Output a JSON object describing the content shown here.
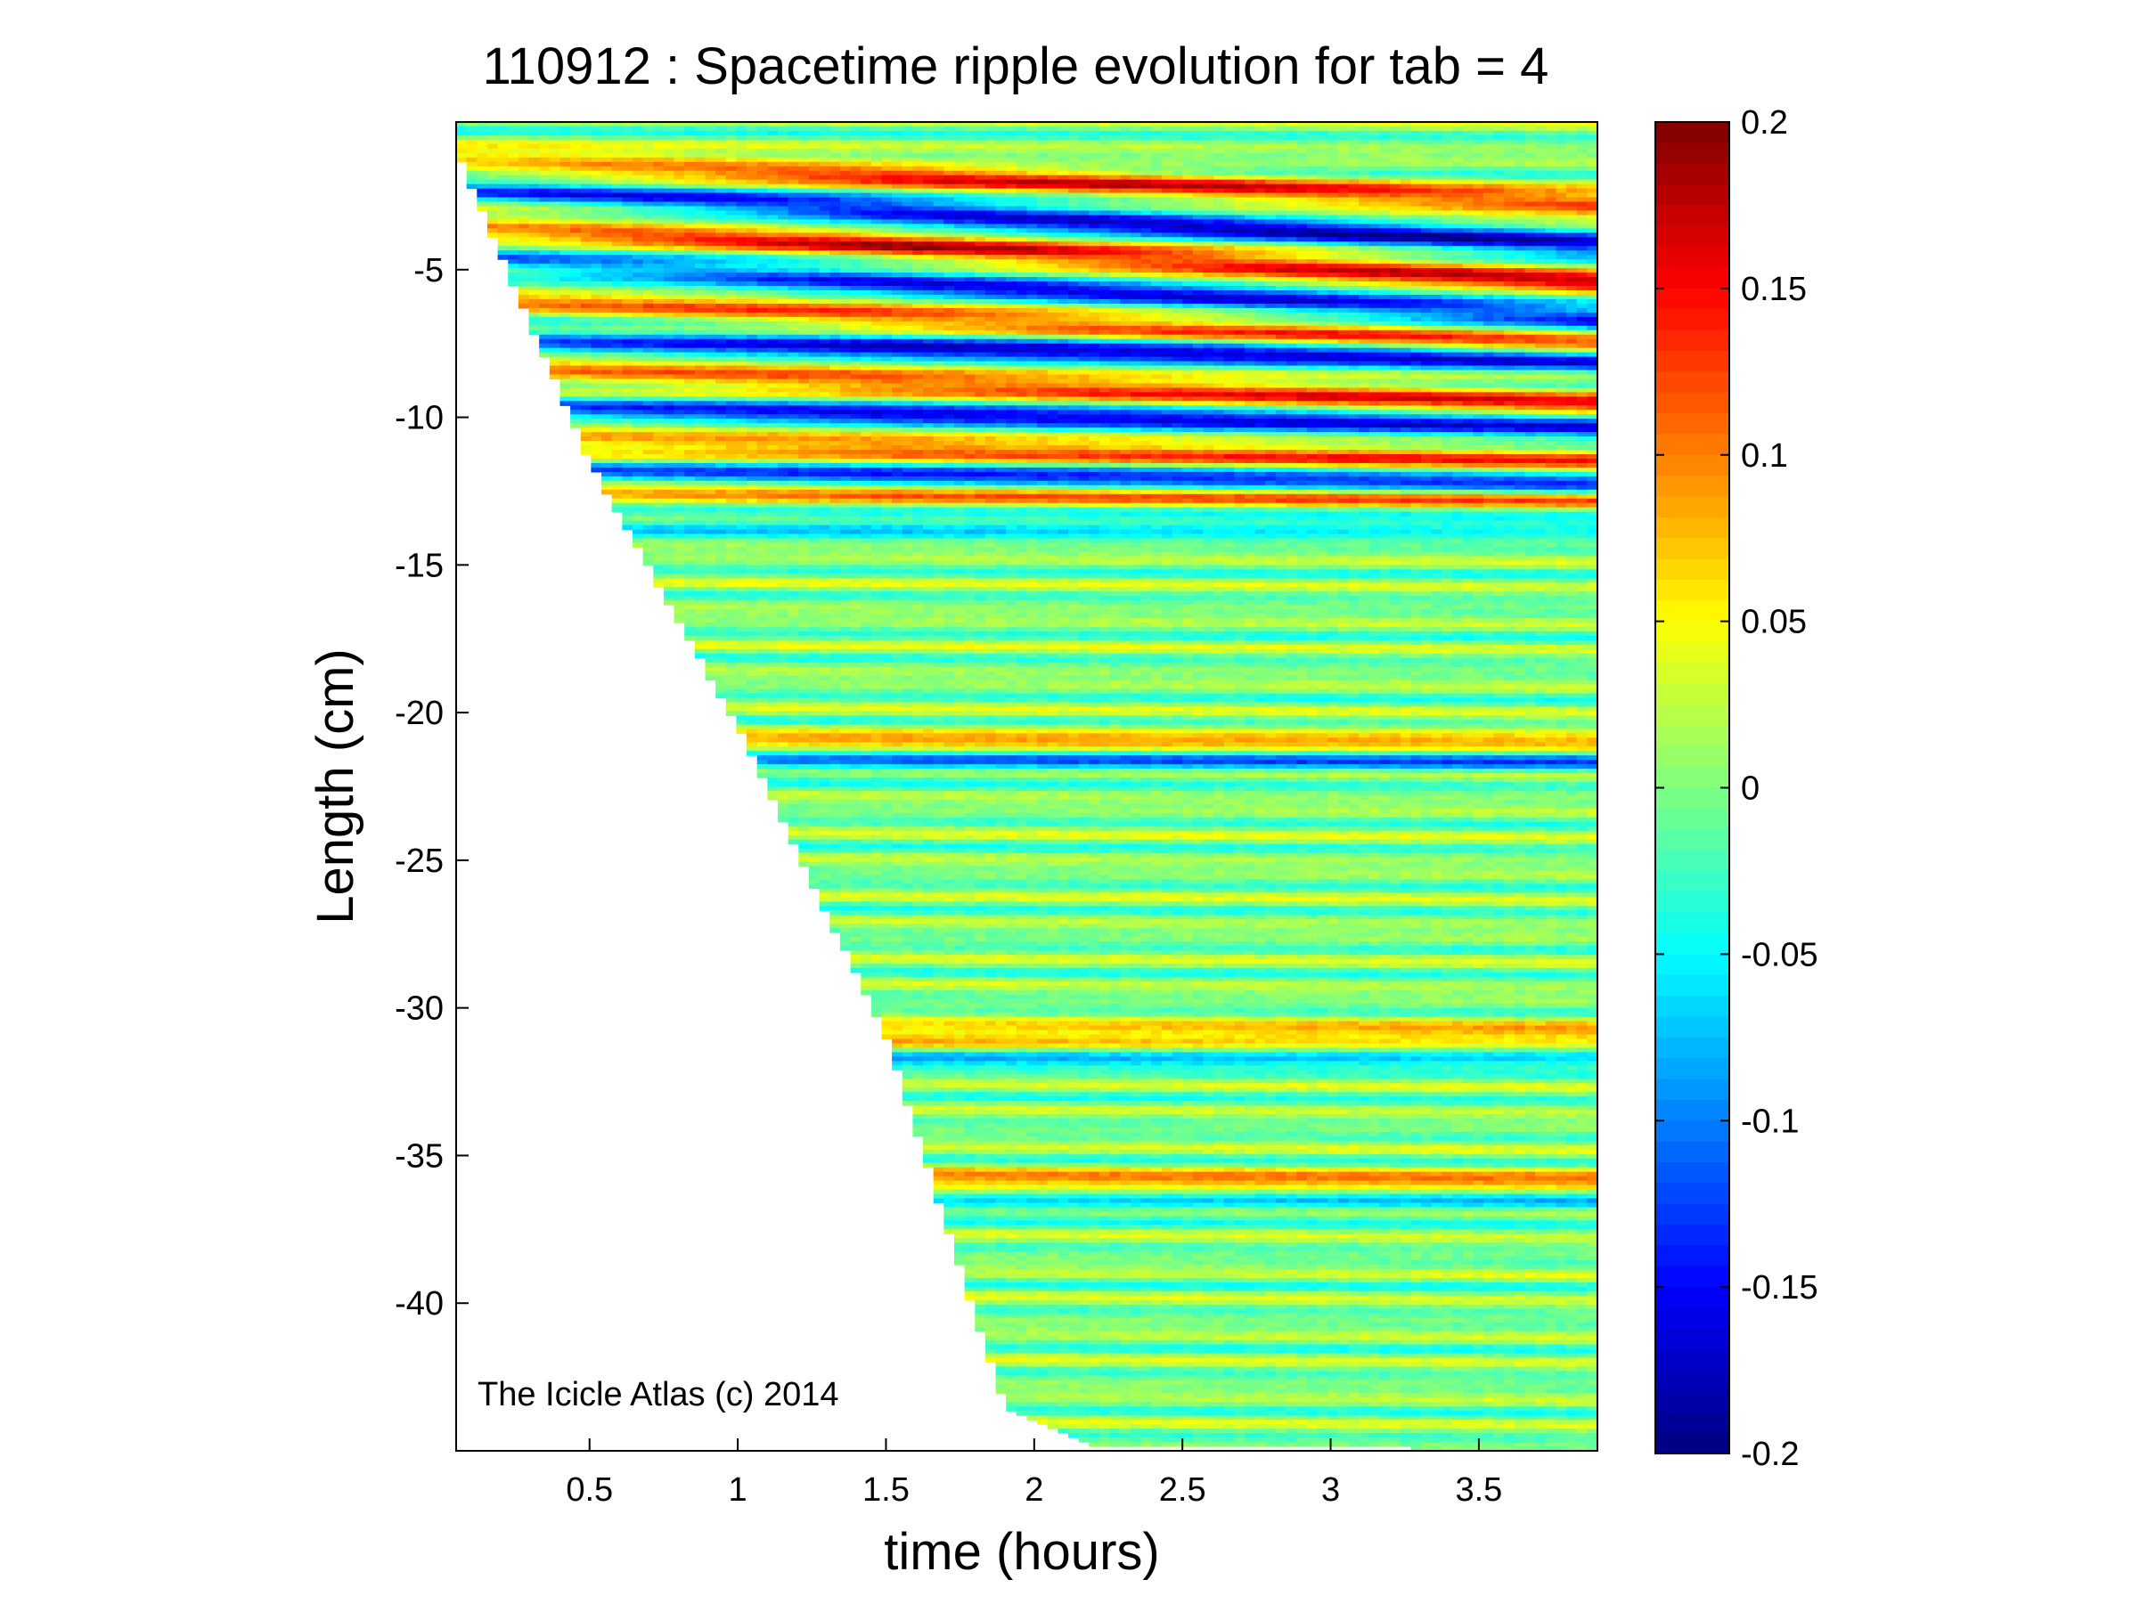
{
  "chart_data": {
    "type": "heatmap",
    "title": "110912 : Spacetime ripple evolution for tab = 4",
    "xlabel": "time (hours)",
    "ylabel": "Length (cm)",
    "xlim": [
      0.05,
      3.9
    ],
    "ylim": [
      -45,
      0
    ],
    "x_ticks": [
      0.5,
      1,
      1.5,
      2,
      2.5,
      3,
      3.5
    ],
    "x_tick_labels": [
      "0.5",
      "1",
      "1.5",
      "2",
      "2.5",
      "3",
      "3.5"
    ],
    "y_ticks": [
      -5,
      -10,
      -15,
      -20,
      -25,
      -30,
      -35,
      -40
    ],
    "y_tick_labels": [
      "-5",
      "-10",
      "-15",
      "-20",
      "-25",
      "-30",
      "-35",
      "-40"
    ],
    "colorbar": {
      "colormap": "jet",
      "clim": [
        -0.2,
        0.2
      ],
      "ticks": [
        0.2,
        0.15,
        0.1,
        0.05,
        0,
        -0.05,
        -0.1,
        -0.15,
        -0.2
      ],
      "tick_labels": [
        "0.2",
        "0.15",
        "0.1",
        "0.05",
        "0",
        "-0.05",
        "-0.1",
        "-0.15",
        "-0.2"
      ]
    },
    "growth_front": [
      {
        "time": 0.05,
        "length": -1.0
      },
      {
        "time": 0.5,
        "length": -11.5
      },
      {
        "time": 1.0,
        "length": -20.5
      },
      {
        "time": 1.5,
        "length": -31.0
      },
      {
        "time": 1.9,
        "length": -43.5
      },
      {
        "time": 2.2,
        "length": -44.8
      },
      {
        "time": 3.9,
        "length": -45.0
      }
    ],
    "ripple_bands": [
      {
        "length": -1.8,
        "amplitude": 0.14,
        "drift": -0.4
      },
      {
        "length": -3.0,
        "amplitude": -0.17,
        "drift": -0.5
      },
      {
        "length": -4.2,
        "amplitude": 0.16,
        "drift": -0.5
      },
      {
        "length": -5.4,
        "amplitude": -0.15,
        "drift": -0.5
      },
      {
        "length": -6.6,
        "amplitude": 0.13,
        "drift": -0.4
      },
      {
        "length": -7.6,
        "amplitude": -0.16,
        "drift": -0.2
      },
      {
        "length": -8.8,
        "amplitude": 0.14,
        "drift": -0.3
      },
      {
        "length": -9.9,
        "amplitude": -0.15,
        "drift": -0.2
      },
      {
        "length": -11.0,
        "amplitude": 0.13,
        "drift": -0.2
      },
      {
        "length": -12.0,
        "amplitude": -0.14,
        "drift": -0.1
      },
      {
        "length": -12.6,
        "amplitude": 0.11,
        "drift": -0.1
      },
      {
        "length": -13.6,
        "amplitude": -0.07,
        "drift": 0
      },
      {
        "length": -21.0,
        "amplitude": 0.09,
        "drift": 0
      },
      {
        "length": -21.6,
        "amplitude": -0.1,
        "drift": 0
      },
      {
        "length": -31.0,
        "amplitude": 0.11,
        "drift": 0
      },
      {
        "length": -31.6,
        "amplitude": -0.08,
        "drift": 0
      },
      {
        "length": -35.9,
        "amplitude": 0.1,
        "drift": 0
      },
      {
        "length": -36.5,
        "amplitude": -0.07,
        "drift": 0
      }
    ]
  },
  "watermark": "The Icicle Atlas (c) 2014"
}
